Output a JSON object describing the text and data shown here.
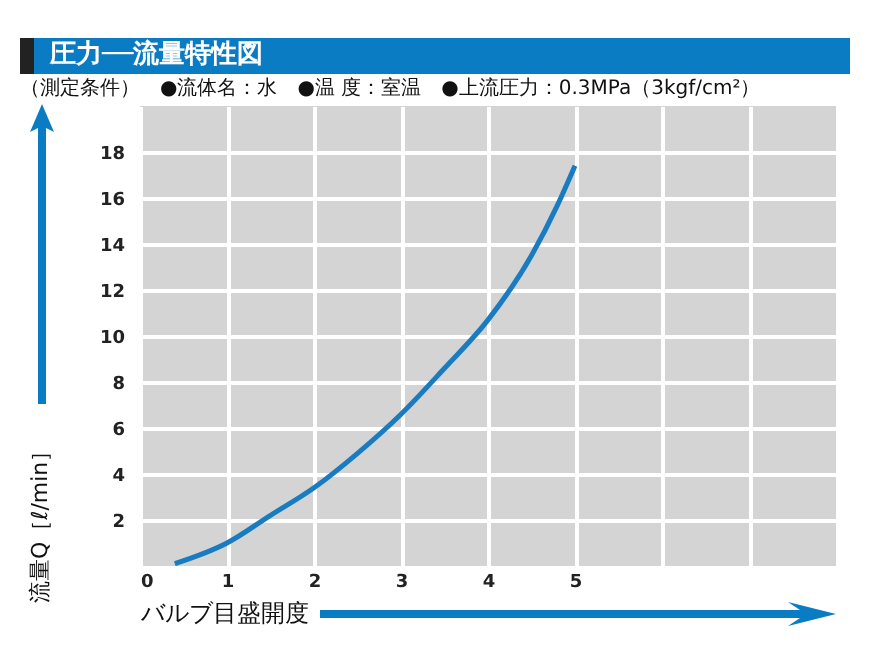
{
  "chart_data": {
    "type": "line",
    "title": "圧力──流量特性図",
    "subtitle": "（測定条件）　●流体名：水　●温 度：室温　●上流圧力：0.3MPa（3kgf/cm²）",
    "xlabel": "バルブ目盛開度",
    "ylabel": "流量Q［ℓ/min］",
    "series": [
      {
        "color": "#1a7cc0",
        "x": [
          0.4,
          1,
          1.5,
          2,
          2.5,
          3,
          3.5,
          4,
          4.5,
          4.8,
          5
        ],
        "values": [
          0.1,
          1.0,
          2.2,
          3.4,
          4.9,
          6.6,
          8.6,
          10.7,
          13.5,
          15.7,
          17.4
        ]
      }
    ],
    "xlim": [
      0,
      8
    ],
    "xticks": [
      0,
      1,
      2,
      3,
      4,
      5,
      {
        "value": 6,
        "label": null
      },
      {
        "value": 7,
        "label": null
      }
    ],
    "ylim": [
      0,
      20
    ],
    "yticks": [
      2,
      4,
      6,
      8,
      10,
      12,
      14,
      16,
      18
    ],
    "grid": true,
    "marker": "none",
    "line_style": "solid"
  }
}
